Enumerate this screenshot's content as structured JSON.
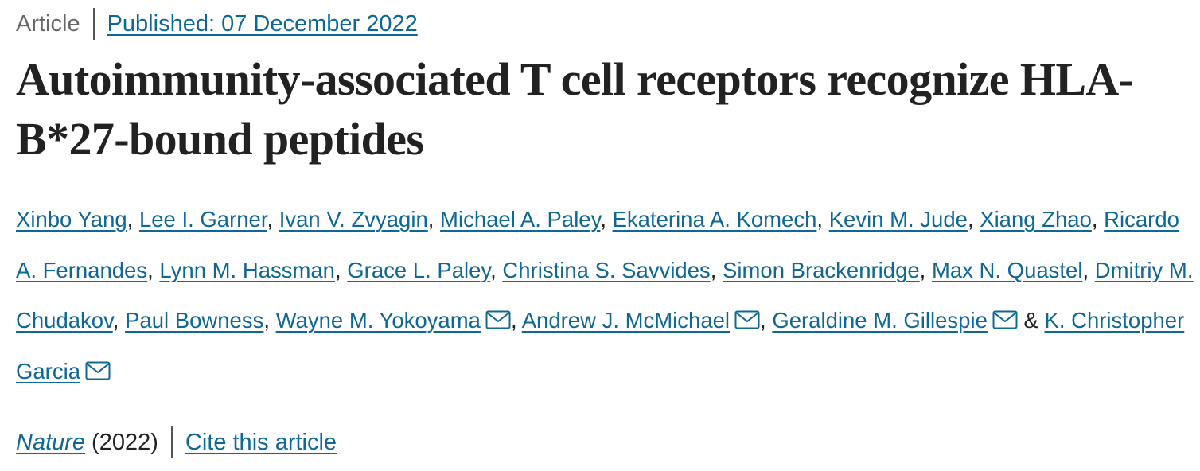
{
  "header": {
    "article_type": "Article",
    "published": "Published: 07 December 2022"
  },
  "title": "Autoimmunity-associated T cell receptors recognize HLA-B*27-bound peptides",
  "authors": [
    {
      "name": "Xinbo Yang",
      "after": ", "
    },
    {
      "name": "Lee I. Garner",
      "after": ", "
    },
    {
      "name": "Ivan V. Zvyagin",
      "after": ", "
    },
    {
      "name": "Michael A. Paley",
      "after": ", "
    },
    {
      "name": "Ekaterina A. Komech",
      "after": ", "
    },
    {
      "name": "Kevin M. Jude",
      "after": ", "
    },
    {
      "name": "Xiang Zhao",
      "after": ", "
    },
    {
      "name": "Ricardo A. Fernandes",
      "after": ", "
    },
    {
      "name": "Lynn M. Hassman",
      "after": ", "
    },
    {
      "name": "Grace L. Paley",
      "after": ", "
    },
    {
      "name": "Christina S. Savvides",
      "after": ", "
    },
    {
      "name": "Simon Brackenridge",
      "after": ", "
    },
    {
      "name": "Max N. Quastel",
      "after": ", "
    },
    {
      "name": "Dmitriy M. Chudakov",
      "after": ", "
    },
    {
      "name": "Paul Bowness",
      "after": ", "
    },
    {
      "name": "Wayne M. Yokoyama",
      "email": true,
      "after": ", "
    },
    {
      "name": "Andrew J. McMichael",
      "email": true,
      "after": ", "
    },
    {
      "name": "Geraldine M. Gillespie",
      "email": true,
      "after": " & "
    },
    {
      "name": "K. Christopher Garcia",
      "email": true
    }
  ],
  "footer": {
    "journal": "Nature",
    "year": "(2022)",
    "cite": "Cite this article"
  }
}
